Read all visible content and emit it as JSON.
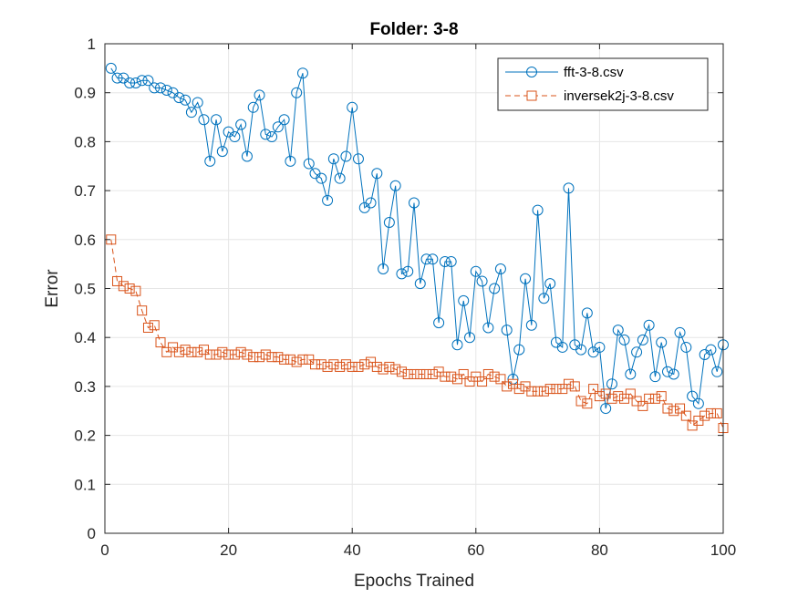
{
  "chart_data": {
    "type": "line",
    "title": "Folder: 3-8",
    "xlabel": "Epochs Trained",
    "ylabel": "Error",
    "xlim": [
      0,
      100
    ],
    "ylim": [
      0,
      1
    ],
    "xticks": [
      "0",
      "20",
      "40",
      "60",
      "80",
      "100"
    ],
    "yticks": [
      "0",
      "0.1",
      "0.2",
      "0.3",
      "0.4",
      "0.5",
      "0.6",
      "0.7",
      "0.8",
      "0.9",
      "1"
    ],
    "grid": true,
    "legend_position": "top-right",
    "series": [
      {
        "name": "fft-3-8.csv",
        "color": "#0072BD",
        "marker": "circle",
        "line": "solid",
        "x": [
          1,
          2,
          3,
          4,
          5,
          6,
          7,
          8,
          9,
          10,
          11,
          12,
          13,
          14,
          15,
          16,
          17,
          18,
          19,
          20,
          21,
          22,
          23,
          24,
          25,
          26,
          27,
          28,
          29,
          30,
          31,
          32,
          33,
          34,
          35,
          36,
          37,
          38,
          39,
          40,
          41,
          42,
          43,
          44,
          45,
          46,
          47,
          48,
          49,
          50,
          51,
          52,
          53,
          54,
          55,
          56,
          57,
          58,
          59,
          60,
          61,
          62,
          63,
          64,
          65,
          66,
          67,
          68,
          69,
          70,
          71,
          72,
          73,
          74,
          75,
          76,
          77,
          78,
          79,
          80,
          81,
          82,
          83,
          84,
          85,
          86,
          87,
          88,
          89,
          90,
          91,
          92,
          93,
          94,
          95,
          96,
          97,
          98,
          99,
          100
        ],
        "y": [
          0.95,
          0.93,
          0.93,
          0.92,
          0.92,
          0.925,
          0.925,
          0.91,
          0.91,
          0.905,
          0.9,
          0.89,
          0.885,
          0.86,
          0.88,
          0.845,
          0.76,
          0.845,
          0.78,
          0.82,
          0.81,
          0.835,
          0.77,
          0.87,
          0.895,
          0.815,
          0.81,
          0.83,
          0.845,
          0.76,
          0.9,
          0.94,
          0.755,
          0.735,
          0.725,
          0.68,
          0.765,
          0.725,
          0.77,
          0.87,
          0.765,
          0.665,
          0.675,
          0.735,
          0.54,
          0.635,
          0.71,
          0.53,
          0.535,
          0.675,
          0.51,
          0.56,
          0.56,
          0.43,
          0.555,
          0.555,
          0.385,
          0.475,
          0.4,
          0.535,
          0.515,
          0.42,
          0.5,
          0.54,
          0.415,
          0.315,
          0.375,
          0.52,
          0.425,
          0.66,
          0.48,
          0.51,
          0.39,
          0.38,
          0.705,
          0.385,
          0.375,
          0.45,
          0.37,
          0.38,
          0.255,
          0.305,
          0.415,
          0.395,
          0.325,
          0.37,
          0.395,
          0.425,
          0.32,
          0.39,
          0.33,
          0.325,
          0.41,
          0.38,
          0.28,
          0.265,
          0.365,
          0.375,
          0.33,
          0.385
        ]
      },
      {
        "name": "inversek2j-3-8.csv",
        "color": "#D95319",
        "marker": "square",
        "line": "dashed",
        "x": [
          1,
          2,
          3,
          4,
          5,
          6,
          7,
          8,
          9,
          10,
          11,
          12,
          13,
          14,
          15,
          16,
          17,
          18,
          19,
          20,
          21,
          22,
          23,
          24,
          25,
          26,
          27,
          28,
          29,
          30,
          31,
          32,
          33,
          34,
          35,
          36,
          37,
          38,
          39,
          40,
          41,
          42,
          43,
          44,
          45,
          46,
          47,
          48,
          49,
          50,
          51,
          52,
          53,
          54,
          55,
          56,
          57,
          58,
          59,
          60,
          61,
          62,
          63,
          64,
          65,
          66,
          67,
          68,
          69,
          70,
          71,
          72,
          73,
          74,
          75,
          76,
          77,
          78,
          79,
          80,
          81,
          82,
          83,
          84,
          85,
          86,
          87,
          88,
          89,
          90,
          91,
          92,
          93,
          94,
          95,
          96,
          97,
          98,
          99,
          100
        ],
        "y": [
          0.6,
          0.515,
          0.505,
          0.5,
          0.495,
          0.455,
          0.42,
          0.425,
          0.39,
          0.37,
          0.38,
          0.37,
          0.375,
          0.37,
          0.37,
          0.375,
          0.365,
          0.365,
          0.37,
          0.365,
          0.365,
          0.37,
          0.365,
          0.36,
          0.36,
          0.365,
          0.36,
          0.36,
          0.355,
          0.355,
          0.35,
          0.355,
          0.355,
          0.345,
          0.345,
          0.34,
          0.345,
          0.34,
          0.345,
          0.34,
          0.34,
          0.345,
          0.35,
          0.34,
          0.335,
          0.34,
          0.335,
          0.33,
          0.325,
          0.325,
          0.325,
          0.325,
          0.325,
          0.33,
          0.32,
          0.32,
          0.315,
          0.325,
          0.31,
          0.32,
          0.31,
          0.325,
          0.32,
          0.315,
          0.3,
          0.305,
          0.295,
          0.3,
          0.29,
          0.29,
          0.29,
          0.295,
          0.295,
          0.295,
          0.305,
          0.3,
          0.27,
          0.265,
          0.295,
          0.28,
          0.285,
          0.275,
          0.28,
          0.275,
          0.285,
          0.27,
          0.26,
          0.275,
          0.275,
          0.28,
          0.255,
          0.25,
          0.255,
          0.24,
          0.22,
          0.23,
          0.24,
          0.245,
          0.245,
          0.215
        ]
      }
    ]
  }
}
